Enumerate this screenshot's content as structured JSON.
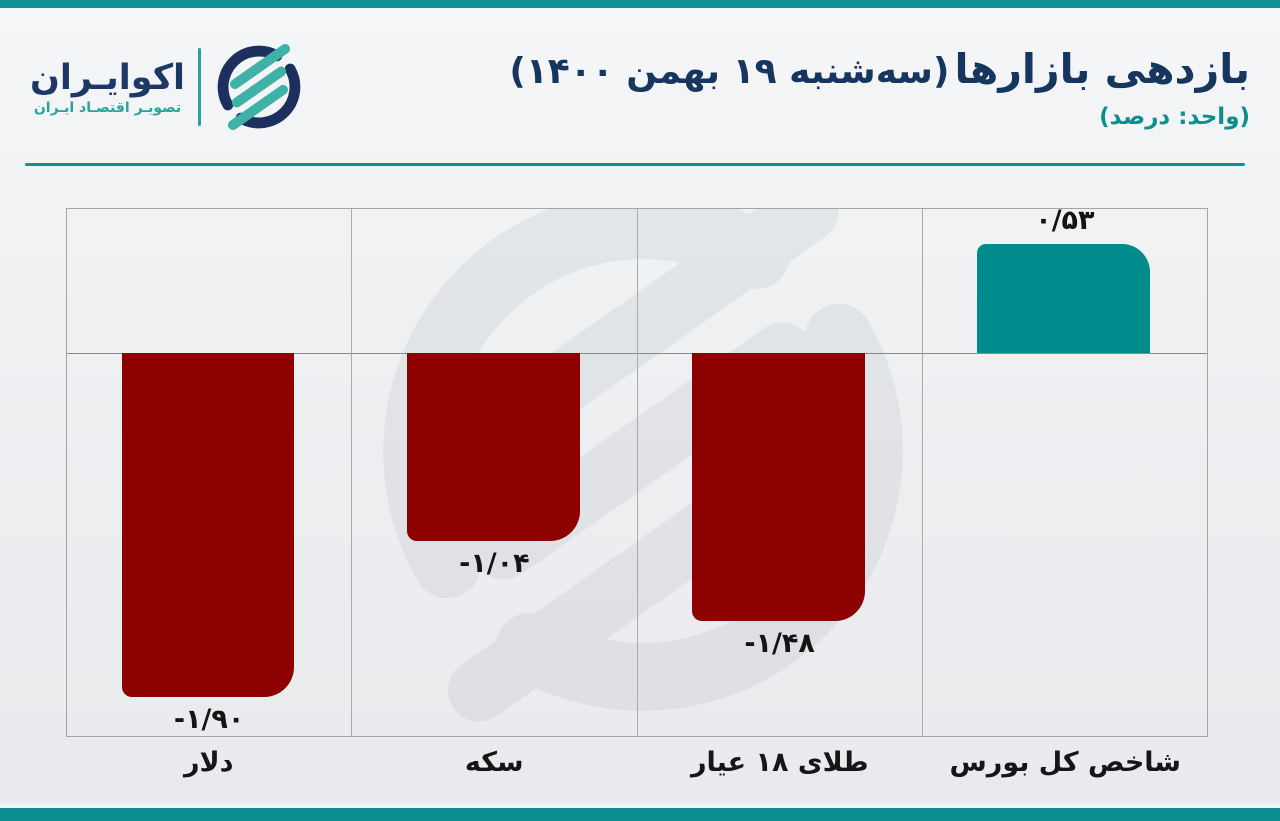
{
  "header": {
    "logo": {
      "name": "اکوایـران",
      "tagline": "تصویـر اقتصـاد ایـران"
    },
    "title": "بازدهی بازارها",
    "title_date": "(سه‌شنبه ۱۹ بهمن ۱۴۰۰)",
    "unit_label": "(واحد: درصد)"
  },
  "chart_data": {
    "type": "bar",
    "title": "بازدهی بازارها (سه‌شنبه ۱۹ بهمن ۱۴۰۰)",
    "unit": "درصد",
    "direction": "rtl",
    "visual_order": "left-to-right",
    "categories": [
      "دلار",
      "سکه",
      "طلای ۱۸ عیار",
      "شاخص کل بورس"
    ],
    "values": [
      -1.9,
      -1.04,
      -1.48,
      0.53
    ],
    "value_labels": [
      "-۱/۹۰",
      "-۱/۰۴",
      "-۱/۴۸",
      "۰/۵۳"
    ],
    "baseline": 0,
    "ylim": [
      -2.16,
      0.8
    ],
    "grid": "outer border, column separators and zero line only",
    "legend": "none",
    "colors": {
      "negative": "#8e0101",
      "positive": "#008c8c"
    }
  },
  "colors": {
    "accent_teal": "#0e9194",
    "rule_teal": "#0f9090",
    "navy": "#16365f",
    "logo_navy": "#1d3766",
    "logo_teal": "#2aa39c",
    "bar_red": "#8e0101",
    "bar_teal": "#008c8c",
    "label_dark": "#141414",
    "grid_gray": "#a5a5a5"
  }
}
